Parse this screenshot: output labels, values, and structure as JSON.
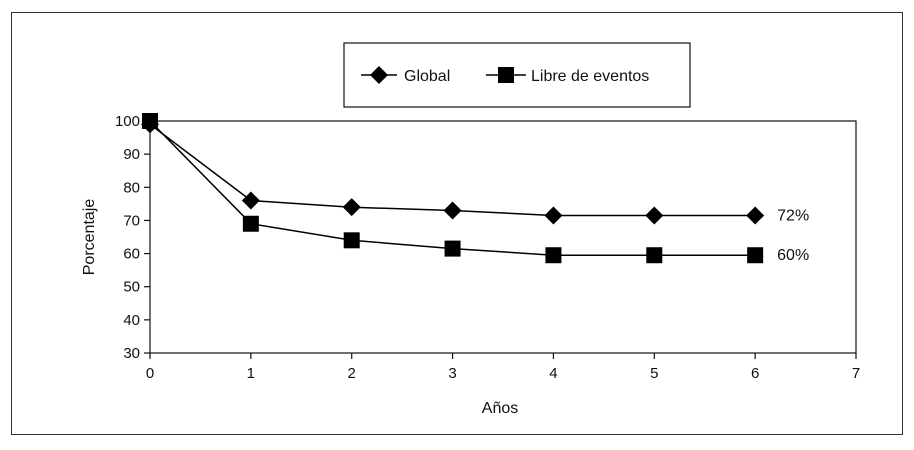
{
  "chart_data": {
    "type": "line",
    "title": "",
    "xlabel": "Años",
    "ylabel": "Porcentaje",
    "xlim": [
      0,
      7
    ],
    "ylim": [
      30,
      100
    ],
    "x_ticks": [
      0,
      1,
      2,
      3,
      4,
      5,
      6,
      7
    ],
    "y_ticks": [
      30,
      40,
      50,
      60,
      70,
      80,
      90,
      100
    ],
    "grid": false,
    "legend_position": "top-center",
    "series": [
      {
        "name": "Global",
        "marker": "diamond",
        "color": "#000000",
        "x": [
          0,
          1,
          2,
          3,
          4,
          5,
          6
        ],
        "y": [
          99,
          76,
          74,
          73,
          71.5,
          71.5,
          71.5
        ],
        "end_label": "72%"
      },
      {
        "name": "Libre de eventos",
        "marker": "square",
        "color": "#000000",
        "x": [
          0,
          1,
          2,
          3,
          4,
          5,
          6
        ],
        "y": [
          100,
          69,
          64,
          61.5,
          59.5,
          59.5,
          59.5
        ],
        "end_label": "60%"
      }
    ]
  }
}
